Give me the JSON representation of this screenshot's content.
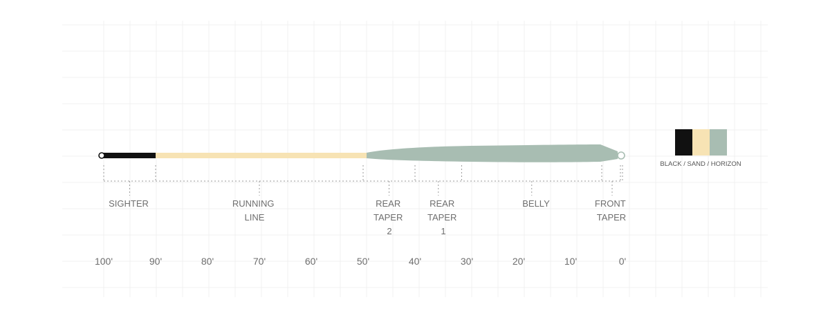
{
  "segments": [
    {
      "key": "sighter",
      "lines": [
        "SIGHTER"
      ],
      "from_ft": 100,
      "to_ft": 90
    },
    {
      "key": "running-line",
      "lines": [
        "RUNNING",
        "LINE"
      ],
      "from_ft": 90,
      "to_ft": 50
    },
    {
      "key": "rear-taper-2",
      "lines": [
        "REAR",
        "TAPER",
        "2"
      ],
      "from_ft": 50,
      "to_ft": 40
    },
    {
      "key": "rear-taper-1",
      "lines": [
        "REAR",
        "TAPER",
        "1"
      ],
      "from_ft": 40,
      "to_ft": 31
    },
    {
      "key": "belly",
      "lines": [
        "BELLY"
      ],
      "from_ft": 31,
      "to_ft": 4
    },
    {
      "key": "front-taper",
      "lines": [
        "FRONT",
        "TAPER"
      ],
      "from_ft": 4,
      "to_ft": 0
    }
  ],
  "axis_ticks": [
    "100'",
    "90'",
    "80'",
    "70'",
    "60'",
    "50'",
    "40'",
    "30'",
    "20'",
    "10'",
    "0'"
  ],
  "colors": {
    "black": "#111111",
    "sand": "#f7e3b4",
    "horizon": "#a8bdb2",
    "grid": "#f0f0f0",
    "bracket": "#9a9a9a"
  },
  "swatch": {
    "label": "BLACK / SAND / HORIZON",
    "colors": [
      "#111111",
      "#f7e3b4",
      "#a8bdb2"
    ]
  }
}
